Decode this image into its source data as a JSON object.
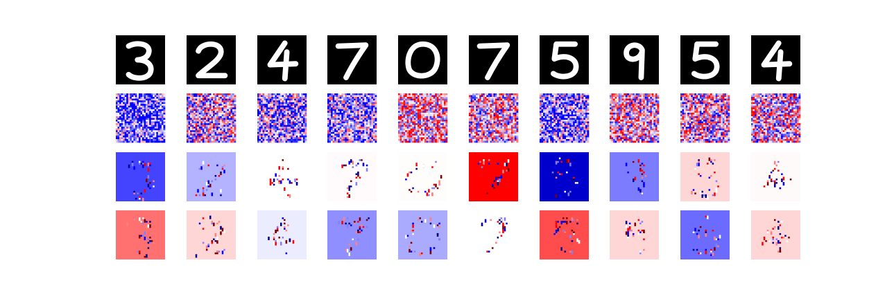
{
  "figure": {
    "rows": [
      {
        "id": "input",
        "kind": "digit"
      },
      {
        "id": "random-noise",
        "kind": "noise"
      },
      {
        "id": "sparse-pattern-a",
        "kind": "sparse"
      },
      {
        "id": "sparse-pattern-b",
        "kind": "sparse"
      }
    ],
    "columns": [
      {
        "digit": "3",
        "sparse_a_bg": "#4444ff",
        "sparse_b_bg": "#ff7070",
        "noise_bias": -0.6
      },
      {
        "digit": "2",
        "sparse_a_bg": "#b3b3ff",
        "sparse_b_bg": "#ffd6d6",
        "noise_bias": -0.1
      },
      {
        "digit": "4",
        "sparse_a_bg": "#ffffff",
        "sparse_b_bg": "#ececff",
        "noise_bias": -0.35
      },
      {
        "digit": "7",
        "sparse_a_bg": "#fffafc",
        "sparse_b_bg": "#8f8fff",
        "noise_bias": -0.35
      },
      {
        "digit": "0",
        "sparse_a_bg": "#fffcfc",
        "sparse_b_bg": "#aaaaff",
        "noise_bias": 0.2
      },
      {
        "digit": "7",
        "sparse_a_bg": "#ff0000",
        "sparse_b_bg": "#ffffff",
        "noise_bias": 0.05
      },
      {
        "digit": "5",
        "sparse_a_bg": "#0000cc",
        "sparse_b_bg": "#ff4c4c",
        "noise_bias": -0.45
      },
      {
        "digit": "9",
        "sparse_a_bg": "#7c7cff",
        "sparse_b_bg": "#ffd6d6",
        "noise_bias": 0.1
      },
      {
        "digit": "5",
        "sparse_a_bg": "#ffd6d6",
        "sparse_b_bg": "#6b6bff",
        "noise_bias": 0.0
      },
      {
        "digit": "4",
        "sparse_a_bg": "#fffafa",
        "sparse_b_bg": "#ffd6d6",
        "noise_bias": 0.05
      }
    ],
    "colors": {
      "negative": "#0000ff",
      "positive": "#ff0000",
      "neutral": "#ffffff",
      "digit_bg": "#000000",
      "digit_fg": "#ffffff"
    }
  }
}
